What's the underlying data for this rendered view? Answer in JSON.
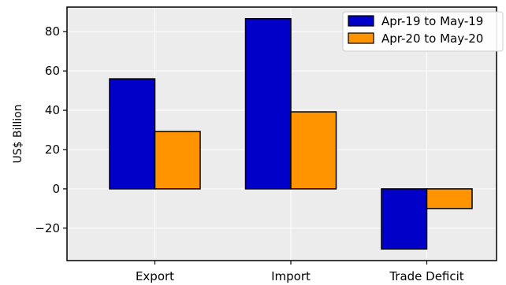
{
  "chart_data": {
    "type": "bar",
    "title": "",
    "xlabel": "",
    "ylabel": "US$ Billion",
    "categories": [
      "Export",
      "Import",
      "Trade Deficit"
    ],
    "series": [
      {
        "name": "Apr-19 to May-19",
        "values": [
          56.0,
          86.6,
          -30.6
        ],
        "color": "#0000c8"
      },
      {
        "name": "Apr-20 to May-20",
        "values": [
          29.2,
          39.2,
          -10.0
        ],
        "color": "#ff9400"
      }
    ],
    "ylim": [
      -36.5,
      92.5
    ],
    "yticks": [
      -20,
      0,
      20,
      40,
      60,
      80
    ],
    "ytick_labels": [
      "−20",
      "0",
      "20",
      "40",
      "60",
      "80"
    ],
    "grid": true,
    "legend_position": "top-right",
    "background": "#ececec",
    "grid_color": "#ffffff"
  }
}
